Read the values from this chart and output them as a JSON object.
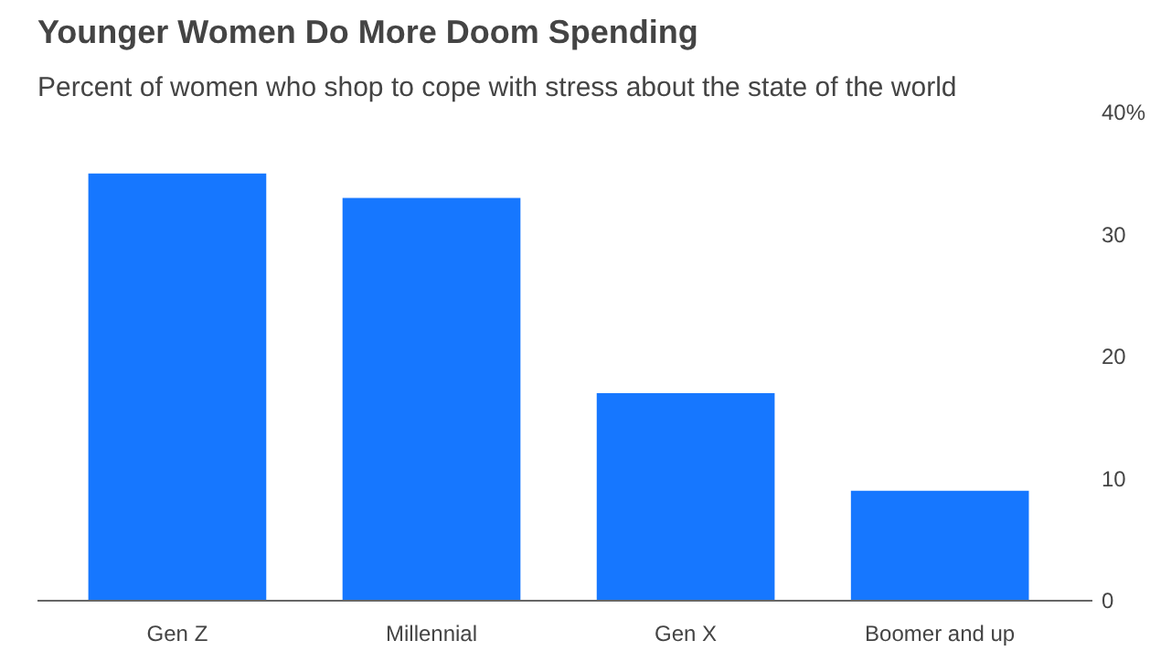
{
  "chart_data": {
    "type": "bar",
    "title": "Younger Women Do More Doom Spending",
    "subtitle": "Percent of women who shop to cope with stress about the state of the world",
    "categories": [
      "Gen Z",
      "Millennial",
      "Gen X",
      "Boomer and up"
    ],
    "values": [
      35,
      33,
      17,
      9
    ],
    "color": "#1677ff",
    "ylim": [
      0,
      40
    ],
    "yticks": [
      0,
      10,
      20,
      30,
      {
        "value": 40,
        "label": "40%"
      }
    ],
    "grid": false
  }
}
